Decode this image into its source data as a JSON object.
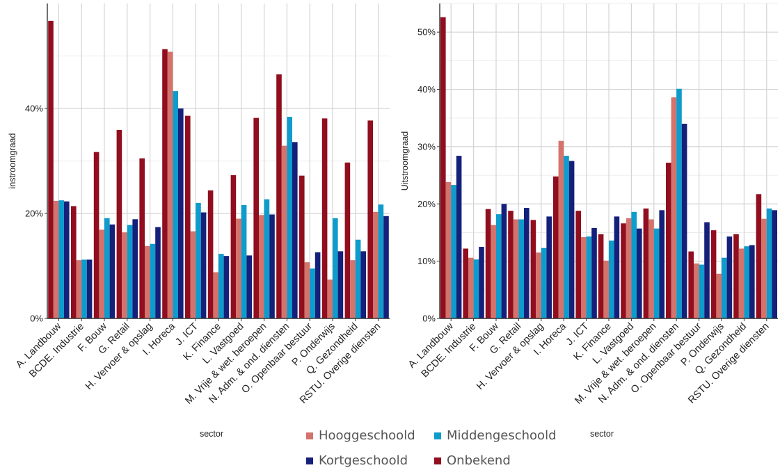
{
  "colors": {
    "hoog": "#d4726c",
    "midden": "#0e9ccc",
    "kort": "#14207a",
    "onbekend": "#900e1e",
    "grid": "#d4d4d4",
    "grid_minor": "#ececec",
    "axis": "#333333",
    "text": "#222222"
  },
  "legend": [
    {
      "key": "hoog",
      "label": "Hooggeschoold"
    },
    {
      "key": "midden",
      "label": "Middengeschoold"
    },
    {
      "key": "kort",
      "label": "Kortgeschoold"
    },
    {
      "key": "onbekend",
      "label": "Onbekend"
    }
  ],
  "chart_data": [
    {
      "type": "bar",
      "xlabel": "sector",
      "ylabel": "instroomgraad",
      "ylim": [
        0,
        0.6
      ],
      "yticks": [
        0,
        0.2,
        0.4
      ],
      "ytick_labels": [
        "0%",
        "20%",
        "40%"
      ],
      "grid": true,
      "categories": [
        "A. Landbouw",
        "BCDE. Industrie",
        "F. Bouw",
        "G. Retail",
        "H. Vervoer & opslag",
        "I. Horeca",
        "J. ICT",
        "K. Finance",
        "L. Vastgoed",
        "M. Vrije & wet. beroepen",
        "N. Adm. & ond. diensten",
        "O. Openbaar bestuur",
        "P. Onderwijs",
        "Q. Gezondheid",
        "RSTU. Overige diensten"
      ],
      "series": [
        {
          "name": "Onbekend",
          "key": "onbekend",
          "values": [
            0.567,
            0.214,
            0.317,
            0.359,
            0.305,
            0.513,
            0.386,
            0.244,
            0.273,
            0.382,
            0.465,
            0.272,
            0.381,
            0.297,
            0.377
          ]
        },
        {
          "name": "Hooggeschoold",
          "key": "hoog",
          "values": [
            0.224,
            0.111,
            0.169,
            0.164,
            0.138,
            0.508,
            0.166,
            0.088,
            0.19,
            0.197,
            0.329,
            0.107,
            0.074,
            0.111,
            0.203
          ]
        },
        {
          "name": "Middengeschoold",
          "key": "midden",
          "values": [
            0.225,
            0.112,
            0.191,
            0.178,
            0.142,
            0.433,
            0.22,
            0.123,
            0.216,
            0.227,
            0.384,
            0.095,
            0.191,
            0.15,
            0.217
          ]
        },
        {
          "name": "Kortgeschoold",
          "key": "kort",
          "values": [
            0.223,
            0.112,
            0.179,
            0.189,
            0.174,
            0.4,
            0.202,
            0.119,
            0.12,
            0.198,
            0.336,
            0.126,
            0.128,
            0.128,
            0.195
          ]
        }
      ]
    },
    {
      "type": "bar",
      "xlabel": "sector",
      "ylabel": "Uitstroomgraad",
      "ylim": [
        0,
        0.55
      ],
      "yticks": [
        0,
        0.1,
        0.2,
        0.3,
        0.4,
        0.5
      ],
      "ytick_labels": [
        "0%",
        "10%",
        "20%",
        "30%",
        "40%",
        "50%"
      ],
      "grid": true,
      "categories": [
        "A. Landbouw",
        "BCDE. Industrie",
        "F. Bouw",
        "G. Retail",
        "H. Vervoer & opslag",
        "I. Horeca",
        "J. ICT",
        "K. Finance",
        "L. Vastgoed",
        "M. Vrije & wet. beroepen",
        "N. Adm. & ond. diensten",
        "O. Openbaar bestuur",
        "P. Onderwijs",
        "Q. Gezondheid",
        "RSTU. Overige diensten"
      ],
      "series": [
        {
          "name": "Onbekend",
          "key": "onbekend",
          "values": [
            0.526,
            0.122,
            0.191,
            0.188,
            0.172,
            0.248,
            0.188,
            0.147,
            0.166,
            0.192,
            0.272,
            0.117,
            0.154,
            0.147,
            0.217
          ]
        },
        {
          "name": "Hooggeschoold",
          "key": "hoog",
          "values": [
            0.238,
            0.106,
            0.163,
            0.173,
            0.115,
            0.31,
            0.142,
            0.101,
            0.175,
            0.173,
            0.386,
            0.096,
            0.078,
            0.122,
            0.174
          ]
        },
        {
          "name": "Middengeschoold",
          "key": "midden",
          "values": [
            0.233,
            0.103,
            0.182,
            0.173,
            0.123,
            0.284,
            0.143,
            0.136,
            0.186,
            0.157,
            0.401,
            0.094,
            0.106,
            0.126,
            0.192
          ]
        },
        {
          "name": "Kortgeschoold",
          "key": "kort",
          "values": [
            0.284,
            0.125,
            0.2,
            0.193,
            0.178,
            0.275,
            0.158,
            0.178,
            0.157,
            0.189,
            0.34,
            0.168,
            0.143,
            0.128,
            0.189
          ]
        }
      ]
    }
  ]
}
